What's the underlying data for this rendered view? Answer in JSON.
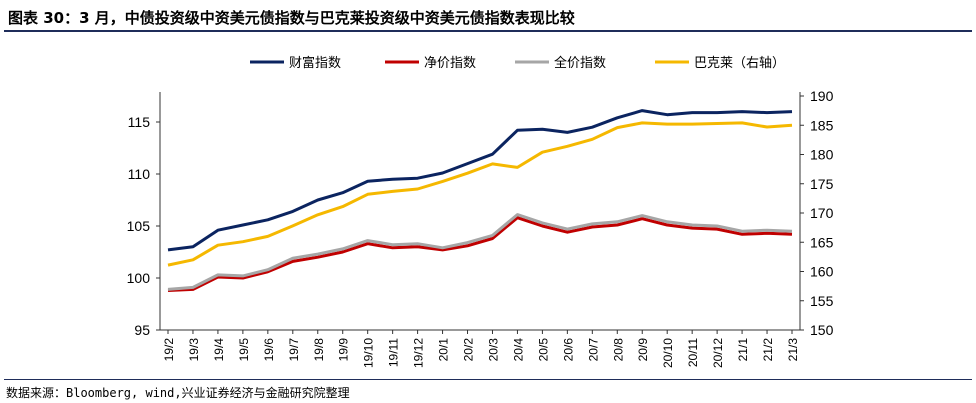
{
  "header": {
    "title": "图表 30：3 月，中债投资级中资美元债指数与巴克莱投资级中资美元债指数表现比较"
  },
  "footer": {
    "source": "数据来源：Bloomberg, wind,兴业证券经济与金融研究院整理"
  },
  "chart_data": {
    "type": "line",
    "title": "",
    "x_tick_labels": [
      "19/2",
      "19/3",
      "19/4",
      "19/5",
      "19/6",
      "19/7",
      "19/8",
      "19/9",
      "19/10",
      "19/11",
      "19/12",
      "20/1",
      "20/2",
      "20/3",
      "20/4",
      "20/5",
      "20/6",
      "20/7",
      "20/8",
      "20/9",
      "20/10",
      "20/11",
      "20/12",
      "21/1",
      "21/2",
      "21/3"
    ],
    "y_left": {
      "ylim": [
        95,
        117.5
      ],
      "ticks": [
        95,
        100,
        105,
        110,
        115
      ]
    },
    "y_right": {
      "ylim": [
        150,
        190
      ],
      "ticks": [
        150,
        155,
        160,
        165,
        170,
        175,
        180,
        185,
        190
      ]
    },
    "legend_position": "top",
    "grid": false,
    "series": [
      {
        "name": "财富指数",
        "color": "#0b2460",
        "axis": "left",
        "values": [
          102.7,
          103.0,
          104.6,
          105.1,
          105.6,
          106.4,
          107.5,
          108.2,
          109.3,
          109.5,
          109.6,
          110.1,
          111.0,
          111.9,
          114.2,
          114.3,
          114.0,
          114.5,
          115.4,
          116.1,
          115.7,
          115.9,
          115.9,
          116.0,
          115.9,
          116.0
        ]
      },
      {
        "name": "净价指数",
        "color": "#c00000",
        "axis": "left",
        "values": [
          98.8,
          98.9,
          100.1,
          100.0,
          100.6,
          101.6,
          102.0,
          102.5,
          103.3,
          102.9,
          103.0,
          102.7,
          103.1,
          103.8,
          105.8,
          105.0,
          104.4,
          104.9,
          105.1,
          105.7,
          105.1,
          104.8,
          104.7,
          104.2,
          104.3,
          104.2
        ]
      },
      {
        "name": "全价指数",
        "color": "#a6a6a6",
        "axis": "left",
        "values": [
          98.9,
          99.1,
          100.3,
          100.2,
          100.8,
          101.9,
          102.3,
          102.8,
          103.6,
          103.2,
          103.3,
          102.9,
          103.4,
          104.1,
          106.1,
          105.3,
          104.7,
          105.2,
          105.4,
          106.0,
          105.4,
          105.1,
          105.0,
          104.5,
          104.6,
          104.5
        ]
      },
      {
        "name": "巴克莱（右轴）",
        "color": "#f5b800",
        "axis": "right",
        "values": [
          161.1,
          162.0,
          164.5,
          165.1,
          166.0,
          167.8,
          169.7,
          171.1,
          173.2,
          173.7,
          174.1,
          175.4,
          176.8,
          178.4,
          177.8,
          180.4,
          181.4,
          182.6,
          184.6,
          185.4,
          185.2,
          185.2,
          185.3,
          185.4,
          184.7,
          185.0
        ]
      }
    ]
  }
}
